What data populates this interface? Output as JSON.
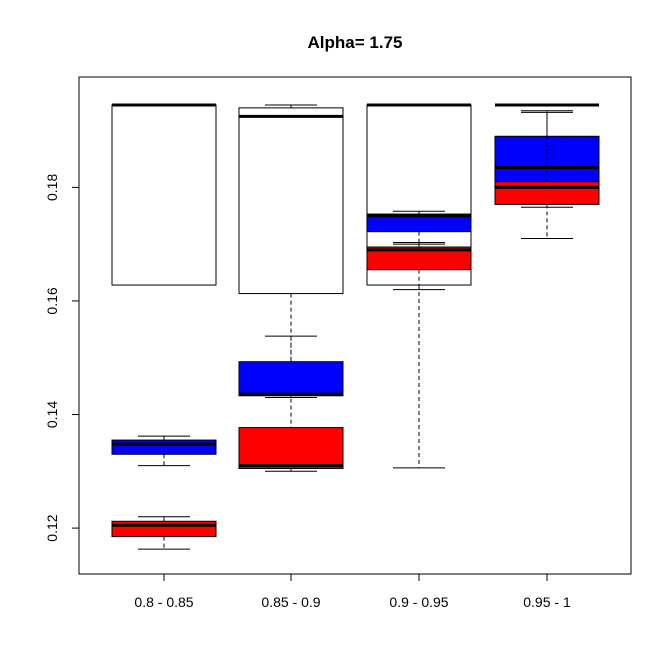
{
  "chart_data": {
    "type": "box",
    "title": "Alpha= 1.75",
    "xlabel": "",
    "ylabel": "",
    "categories": [
      "0.8 - 0.85",
      "0.85 - 0.9",
      "0.9 - 0.95",
      "0.95 - 1"
    ],
    "ylim": [
      0.1135,
      0.1975
    ],
    "yticks": [
      0.12,
      0.14,
      0.16,
      0.18
    ],
    "ytick_labels": [
      "0.12",
      "0.14",
      "0.16",
      "0.18"
    ],
    "grid": false,
    "legend": "none",
    "series": [
      {
        "color": "#ffffff",
        "boxes": [
          {
            "whisker_low": 0.1628,
            "q1": 0.1628,
            "median": 0.1945,
            "q3": 0.1945,
            "whisker_high": 0.1945
          },
          {
            "whisker_low": 0.1306,
            "q1": 0.1613,
            "median": 0.1925,
            "q3": 0.194,
            "whisker_high": 0.1945
          },
          {
            "whisker_low": 0.1306,
            "q1": 0.1628,
            "median": 0.1945,
            "q3": 0.1945,
            "whisker_high": 0.1945
          },
          {
            "whisker_low": 0.1945,
            "q1": 0.1945,
            "median": 0.1945,
            "q3": 0.1945,
            "whisker_high": 0.1945
          }
        ]
      },
      {
        "color": "#0000ff",
        "boxes": [
          {
            "whisker_low": 0.131,
            "q1": 0.133,
            "median": 0.1348,
            "q3": 0.1355,
            "whisker_high": 0.1362
          },
          {
            "whisker_low": 0.143,
            "q1": 0.1433,
            "median": 0.1436,
            "q3": 0.1493,
            "whisker_high": 0.1538
          },
          {
            "whisker_low": 0.17,
            "q1": 0.1722,
            "median": 0.175,
            "q3": 0.1753,
            "whisker_high": 0.1758
          },
          {
            "whisker_low": 0.1765,
            "q1": 0.181,
            "median": 0.1835,
            "q3": 0.189,
            "whisker_high": 0.1935
          }
        ]
      },
      {
        "color": "#ff0000",
        "boxes": [
          {
            "whisker_low": 0.1163,
            "q1": 0.1185,
            "median": 0.1205,
            "q3": 0.1212,
            "whisker_high": 0.122
          },
          {
            "whisker_low": 0.13,
            "q1": 0.1305,
            "median": 0.131,
            "q3": 0.1377,
            "whisker_high": 0.1377
          },
          {
            "whisker_low": 0.162,
            "q1": 0.1655,
            "median": 0.169,
            "q3": 0.1695,
            "whisker_high": 0.1703
          },
          {
            "whisker_low": 0.171,
            "q1": 0.177,
            "median": 0.18,
            "q3": 0.181,
            "whisker_high": 0.1932
          }
        ]
      }
    ]
  }
}
